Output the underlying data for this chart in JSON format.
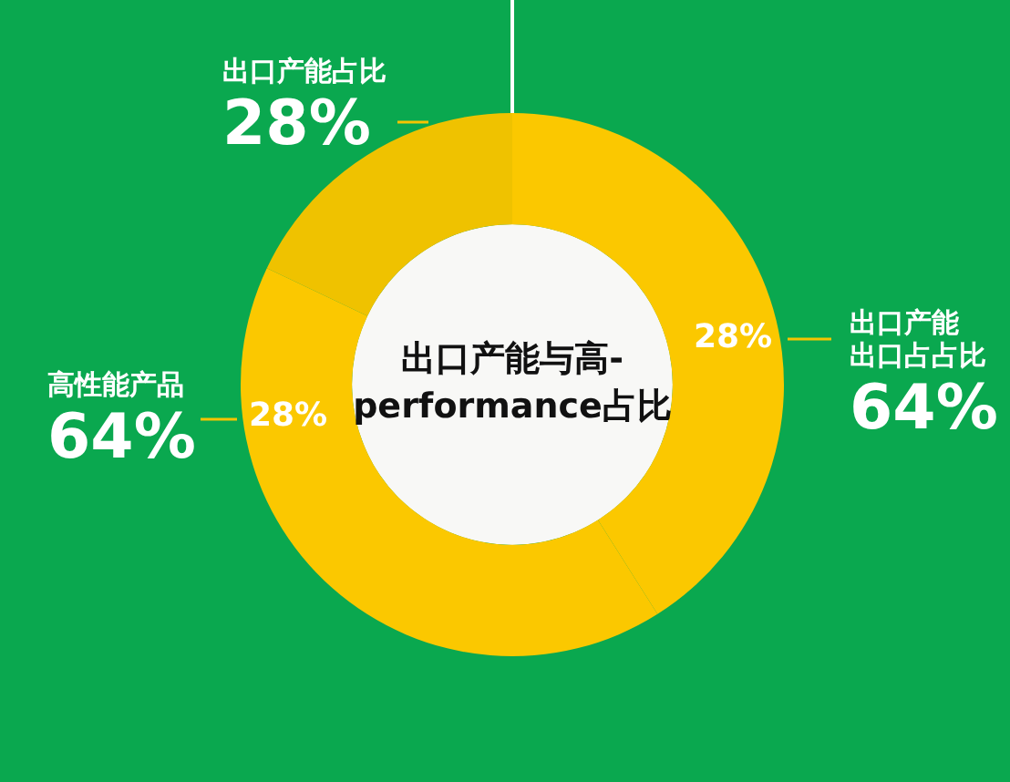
{
  "chart_data": {
    "type": "donut",
    "title": "出口产能与高-\nperformance占比",
    "categories": [
      "出口产能占比",
      "出口产能出口占占比",
      "高性能产品"
    ],
    "values": [
      28,
      64,
      64
    ],
    "colors": [
      "#efc200",
      "#fbc800",
      "#fbc800"
    ],
    "value_labels": [
      "28%",
      "64%",
      "64%"
    ],
    "annotations": [
      "28%",
      "28%"
    ],
    "legend": false
  }
}
